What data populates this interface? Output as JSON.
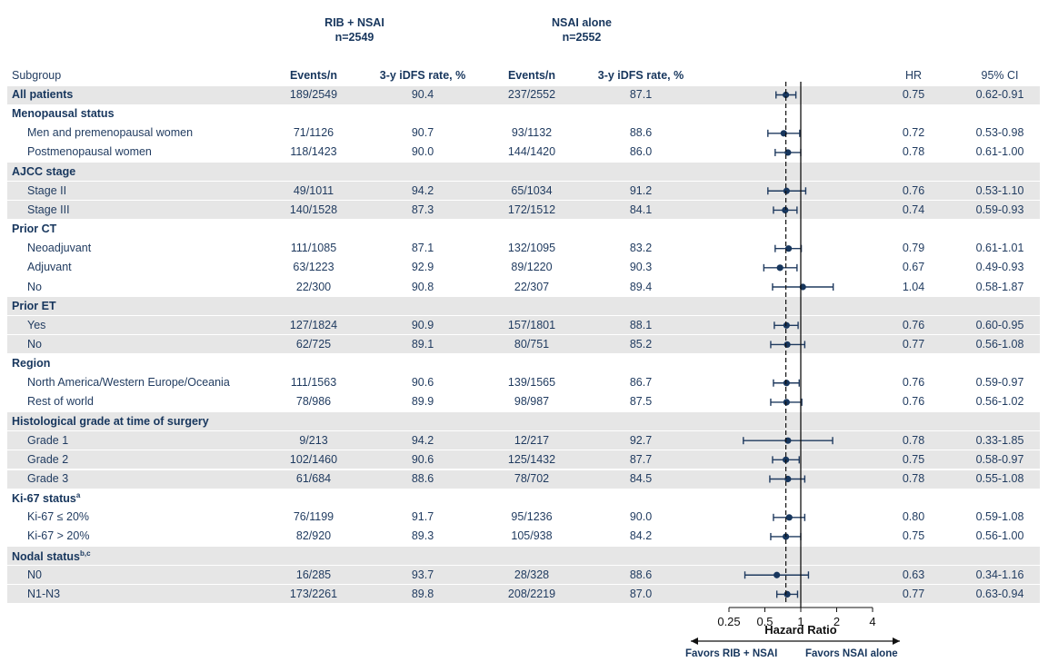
{
  "arm_headers": {
    "arm1_name": "RIB + NSAI",
    "arm1_n": "n=2549",
    "arm2_name": "NSAI alone",
    "arm2_n": "n=2552"
  },
  "column_headers": {
    "subgroup": "Subgroup",
    "events1": "Events/n",
    "rate1": "3-y iDFS rate, %",
    "events2": "Events/n",
    "rate2": "3-y iDFS rate, %",
    "hr": "HR",
    "ci": "95% CI"
  },
  "chart_data": {
    "type": "forest",
    "xlabel": "Hazard Ratio",
    "x_scale": "log",
    "xlim": [
      0.25,
      4
    ],
    "ticks": [
      "0.25",
      "0.5",
      "1",
      "2",
      "4"
    ],
    "tick_values": [
      0.25,
      0.5,
      1,
      2,
      4
    ],
    "reference_line": 1,
    "overall_line": 0.75,
    "favors_left": "Favors RIB + NSAI",
    "favors_right": "Favors NSAI alone",
    "rows": [
      {
        "kind": "data",
        "band": true,
        "bold": true,
        "label": "All patients",
        "e1": "189/2549",
        "r1": "90.4",
        "e2": "237/2552",
        "r2": "87.1",
        "hr_text": "0.75",
        "ci_text": "0.62-0.91",
        "hr": 0.75,
        "lo": 0.62,
        "hi": 0.91
      },
      {
        "kind": "group",
        "band": false,
        "label": "Menopausal status"
      },
      {
        "kind": "data",
        "band": false,
        "label": "Men and premenopausal  women",
        "e1": "71/1126",
        "r1": "90.7",
        "e2": "93/1132",
        "r2": "88.6",
        "hr_text": "0.72",
        "ci_text": "0.53-0.98",
        "hr": 0.72,
        "lo": 0.53,
        "hi": 0.98
      },
      {
        "kind": "data",
        "band": false,
        "label": "Postmenopausal  women",
        "e1": "118/1423",
        "r1": "90.0",
        "e2": "144/1420",
        "r2": "86.0",
        "hr_text": "0.78",
        "ci_text": "0.61-1.00",
        "hr": 0.78,
        "lo": 0.61,
        "hi": 1.0
      },
      {
        "kind": "group",
        "band": true,
        "label": "AJCC stage"
      },
      {
        "kind": "data",
        "band": true,
        "label": "Stage II",
        "e1": "49/1011",
        "r1": "94.2",
        "e2": "65/1034",
        "r2": "91.2",
        "hr_text": "0.76",
        "ci_text": "0.53-1.10",
        "hr": 0.76,
        "lo": 0.53,
        "hi": 1.1
      },
      {
        "kind": "data",
        "band": true,
        "label": "Stage III",
        "e1": "140/1528",
        "r1": "87.3",
        "e2": "172/1512",
        "r2": "84.1",
        "hr_text": "0.74",
        "ci_text": "0.59-0.93",
        "hr": 0.74,
        "lo": 0.59,
        "hi": 0.93
      },
      {
        "kind": "group",
        "band": false,
        "label": "Prior CT"
      },
      {
        "kind": "data",
        "band": false,
        "label": "Neoadjuvant",
        "e1": "111/1085",
        "r1": "87.1",
        "e2": "132/1095",
        "r2": "83.2",
        "hr_text": "0.79",
        "ci_text": "0.61-1.01",
        "hr": 0.79,
        "lo": 0.61,
        "hi": 1.01
      },
      {
        "kind": "data",
        "band": false,
        "label": "Adjuvant",
        "e1": "63/1223",
        "r1": "92.9",
        "e2": "89/1220",
        "r2": "90.3",
        "hr_text": "0.67",
        "ci_text": "0.49-0.93",
        "hr": 0.67,
        "lo": 0.49,
        "hi": 0.93
      },
      {
        "kind": "data",
        "band": false,
        "label": "No",
        "e1": "22/300",
        "r1": "90.8",
        "e2": "22/307",
        "r2": "89.4",
        "hr_text": "1.04",
        "ci_text": "0.58-1.87",
        "hr": 1.04,
        "lo": 0.58,
        "hi": 1.87
      },
      {
        "kind": "group",
        "band": true,
        "label": "Prior ET"
      },
      {
        "kind": "data",
        "band": true,
        "label": "Yes",
        "e1": "127/1824",
        "r1": "90.9",
        "e2": "157/1801",
        "r2": "88.1",
        "hr_text": "0.76",
        "ci_text": "0.60-0.95",
        "hr": 0.76,
        "lo": 0.6,
        "hi": 0.95
      },
      {
        "kind": "data",
        "band": true,
        "label": "No",
        "e1": "62/725",
        "r1": "89.1",
        "e2": "80/751",
        "r2": "85.2",
        "hr_text": "0.77",
        "ci_text": "0.56-1.08",
        "hr": 0.77,
        "lo": 0.56,
        "hi": 1.08
      },
      {
        "kind": "group",
        "band": false,
        "label": "Region"
      },
      {
        "kind": "data",
        "band": false,
        "label": "North America/Western Europe/Oceania",
        "e1": "111/1563",
        "r1": "90.6",
        "e2": "139/1565",
        "r2": "86.7",
        "hr_text": "0.76",
        "ci_text": "0.59-0.97",
        "hr": 0.76,
        "lo": 0.59,
        "hi": 0.97
      },
      {
        "kind": "data",
        "band": false,
        "label": "Rest of world",
        "e1": "78/986",
        "r1": "89.9",
        "e2": "98/987",
        "r2": "87.5",
        "hr_text": "0.76",
        "ci_text": "0.56-1.02",
        "hr": 0.76,
        "lo": 0.56,
        "hi": 1.02
      },
      {
        "kind": "group",
        "band": true,
        "label": "Histological grade at time of surgery"
      },
      {
        "kind": "data",
        "band": true,
        "label": "Grade 1",
        "e1": "9/213",
        "r1": "94.2",
        "e2": "12/217",
        "r2": "92.7",
        "hr_text": "0.78",
        "ci_text": "0.33-1.85",
        "hr": 0.78,
        "lo": 0.33,
        "hi": 1.85
      },
      {
        "kind": "data",
        "band": true,
        "label": "Grade 2",
        "e1": "102/1460",
        "r1": "90.6",
        "e2": "125/1432",
        "r2": "87.7",
        "hr_text": "0.75",
        "ci_text": "0.58-0.97",
        "hr": 0.75,
        "lo": 0.58,
        "hi": 0.97
      },
      {
        "kind": "data",
        "band": true,
        "label": "Grade 3",
        "e1": "61/684",
        "r1": "88.6",
        "e2": "78/702",
        "r2": "84.5",
        "hr_text": "0.78",
        "ci_text": "0.55-1.08",
        "hr": 0.78,
        "lo": 0.55,
        "hi": 1.08
      },
      {
        "kind": "group",
        "band": false,
        "label": "Ki-67 status",
        "sup": "a"
      },
      {
        "kind": "data",
        "band": false,
        "label": "Ki-67 ≤ 20%",
        "e1": "76/1199",
        "r1": "91.7",
        "e2": "95/1236",
        "r2": "90.0",
        "hr_text": "0.80",
        "ci_text": "0.59-1.08",
        "hr": 0.8,
        "lo": 0.59,
        "hi": 1.08
      },
      {
        "kind": "data",
        "band": false,
        "label": "Ki-67 > 20%",
        "e1": "82/920",
        "r1": "89.3",
        "e2": "105/938",
        "r2": "84.2",
        "hr_text": "0.75",
        "ci_text": "0.56-1.00",
        "hr": 0.75,
        "lo": 0.56,
        "hi": 1.0
      },
      {
        "kind": "group",
        "band": true,
        "label": "Nodal status",
        "sup": "b,c"
      },
      {
        "kind": "data",
        "band": true,
        "label": "N0",
        "e1": "16/285",
        "r1": "93.7",
        "e2": "28/328",
        "r2": "88.6",
        "hr_text": "0.63",
        "ci_text": "0.34-1.16",
        "hr": 0.63,
        "lo": 0.34,
        "hi": 1.16
      },
      {
        "kind": "data",
        "band": true,
        "label": "N1-N3",
        "e1": "173/2261",
        "r1": "89.8",
        "e2": "208/2219",
        "r2": "87.0",
        "hr_text": "0.77",
        "ci_text": "0.63-0.94",
        "hr": 0.77,
        "lo": 0.63,
        "hi": 0.94
      }
    ]
  }
}
